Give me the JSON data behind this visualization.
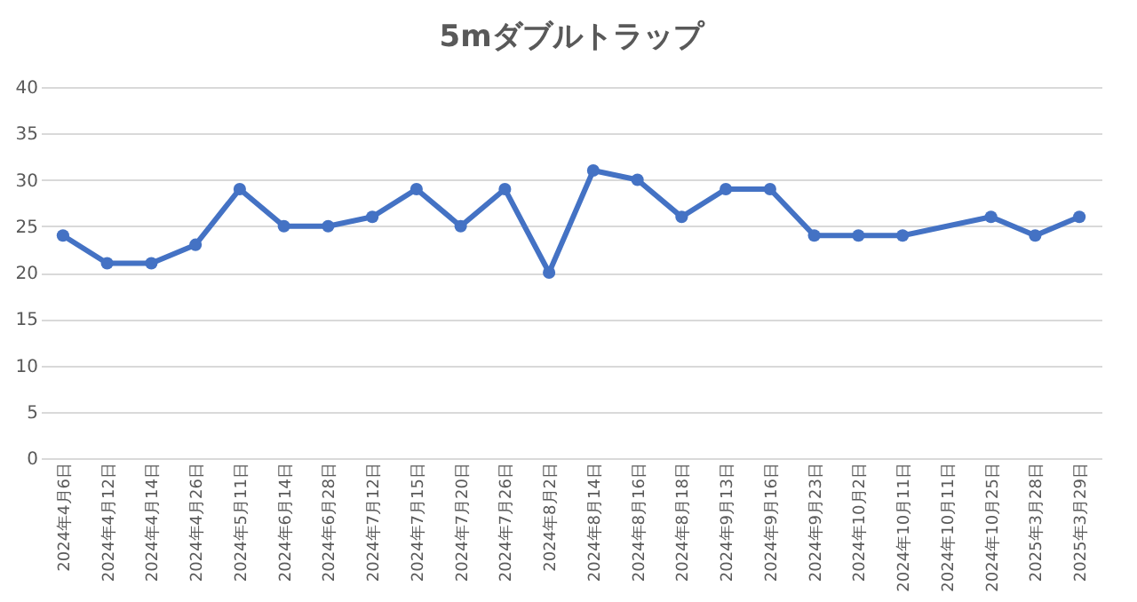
{
  "chart_data": {
    "type": "line",
    "title": "5mダブルトラップ",
    "categories": [
      "2024年4月6日",
      "2024年4月12日",
      "2024年4月14日",
      "2024年4月26日",
      "2024年5月11日",
      "2024年6月14日",
      "2024年6月28日",
      "2024年7月12日",
      "2024年7月15日",
      "2024年7月20日",
      "2024年7月26日",
      "2024年8月2日",
      "2024年8月14日",
      "2024年8月16日",
      "2024年8月18日",
      "2024年9月13日",
      "2024年9月16日",
      "2024年9月23日",
      "2024年10月2日",
      "2024年10月11日",
      "2024年10月11日",
      "2024年10月25日",
      "2025年3月28日",
      "2025年3月29日"
    ],
    "series": [
      {
        "color": "#4472c4",
        "values": [
          24,
          21,
          21,
          23,
          29,
          25,
          25,
          26,
          29,
          25,
          29,
          20,
          31,
          30,
          26,
          29,
          29,
          24,
          24,
          24,
          null,
          26,
          24,
          26
        ]
      }
    ],
    "ylim": [
      0,
      40
    ],
    "yticks": [
      0,
      5,
      10,
      15,
      20,
      25,
      30,
      35,
      40
    ],
    "grid": "y",
    "marker": "circle",
    "line_style": "solid"
  }
}
